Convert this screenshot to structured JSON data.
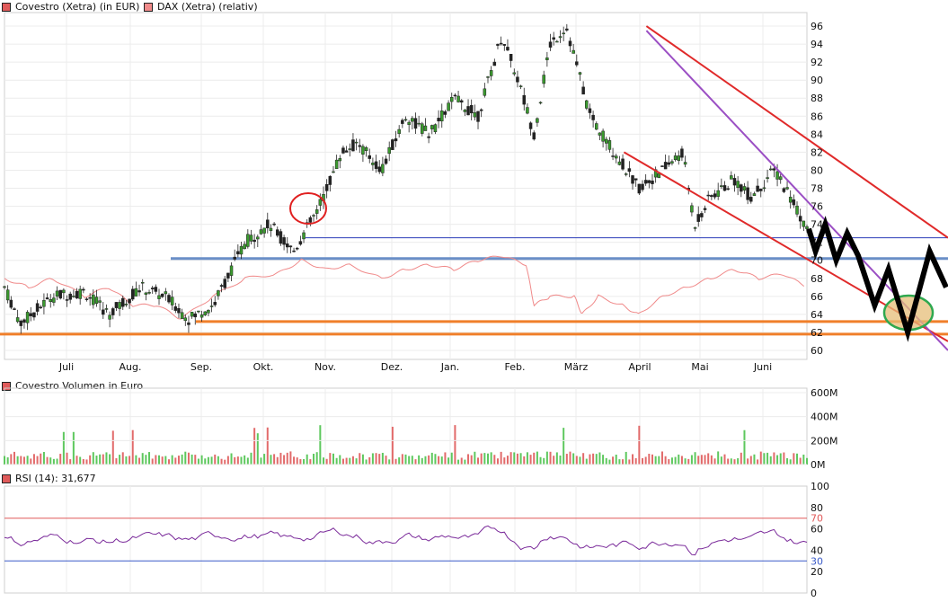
{
  "legend": {
    "main_series": "Covestro (Xetra) (in EUR)",
    "compare_series": "DAX (Xetra) (relativ)",
    "main_color": "#e05a5a",
    "compare_color": "#f08a8a"
  },
  "volume": {
    "label": "Covestro Volumen in Euro",
    "y_ticks": [
      "600M",
      "400M",
      "200M",
      "0M"
    ]
  },
  "rsi": {
    "label": "RSI (14): 31,677",
    "y_ticks": [
      "100",
      "80",
      "70",
      "60",
      "40",
      "30",
      "20",
      "0"
    ],
    "levels": [
      70,
      30
    ]
  },
  "chart_data": {
    "type": "candlestick",
    "x_ticks": [
      "Juli",
      "Aug.",
      "Sep.",
      "Okt.",
      "Nov.",
      "Dez.",
      "Jan.",
      "Feb.",
      "März",
      "April",
      "Mai",
      "Juni"
    ],
    "y_ticks": [
      60,
      62,
      64,
      66,
      68,
      70,
      72,
      74,
      76,
      78,
      80,
      82,
      84,
      86,
      88,
      90,
      92,
      94,
      96
    ],
    "ylim": [
      59,
      97.5
    ],
    "price_path": [
      [
        0,
        67
      ],
      [
        0.02,
        63
      ],
      [
        0.06,
        66
      ],
      [
        0.1,
        66.5
      ],
      [
        0.13,
        64
      ],
      [
        0.17,
        67
      ],
      [
        0.2,
        66
      ],
      [
        0.23,
        63.5
      ],
      [
        0.26,
        65
      ],
      [
        0.3,
        72
      ],
      [
        0.33,
        74
      ],
      [
        0.36,
        71
      ],
      [
        0.39,
        75.5
      ],
      [
        0.42,
        82
      ],
      [
        0.44,
        83
      ],
      [
        0.47,
        80
      ],
      [
        0.5,
        86
      ],
      [
        0.53,
        84
      ],
      [
        0.56,
        88
      ],
      [
        0.59,
        86
      ],
      [
        0.62,
        95
      ],
      [
        0.64,
        90
      ],
      [
        0.66,
        84
      ],
      [
        0.68,
        94
      ],
      [
        0.7,
        96
      ],
      [
        0.73,
        86
      ],
      [
        0.76,
        82
      ],
      [
        0.79,
        78
      ],
      [
        0.82,
        80
      ],
      [
        0.845,
        82
      ],
      [
        0.86,
        74
      ],
      [
        0.88,
        77
      ],
      [
        0.91,
        79
      ],
      [
        0.93,
        77
      ],
      [
        0.96,
        80
      ],
      [
        0.98,
        77
      ],
      [
        1.0,
        73.5
      ]
    ],
    "dax_relative_path": [
      [
        0,
        68
      ],
      [
        0.03,
        67
      ],
      [
        0.06,
        68
      ],
      [
        0.1,
        66
      ],
      [
        0.13,
        67
      ],
      [
        0.16,
        65
      ],
      [
        0.19,
        65
      ],
      [
        0.22,
        63.5
      ],
      [
        0.26,
        66
      ],
      [
        0.3,
        68
      ],
      [
        0.34,
        68.5
      ],
      [
        0.37,
        70
      ],
      [
        0.4,
        69
      ],
      [
        0.43,
        69.5
      ],
      [
        0.47,
        68
      ],
      [
        0.5,
        69
      ],
      [
        0.53,
        69.5
      ],
      [
        0.56,
        69
      ],
      [
        0.59,
        70
      ],
      [
        0.62,
        70.5
      ],
      [
        0.65,
        69.5
      ],
      [
        0.66,
        65
      ],
      [
        0.68,
        66
      ],
      [
        0.71,
        66
      ],
      [
        0.72,
        64
      ],
      [
        0.74,
        66
      ],
      [
        0.77,
        65
      ],
      [
        0.79,
        64
      ],
      [
        0.82,
        66
      ],
      [
        0.85,
        67
      ],
      [
        0.88,
        68
      ],
      [
        0.91,
        69
      ],
      [
        0.94,
        68
      ],
      [
        0.97,
        68.5
      ],
      [
        1.0,
        67
      ]
    ],
    "horizontal_lines": [
      {
        "value": 72.5,
        "color": "#2b3db8"
      },
      {
        "value": 70.2,
        "color": "#6a8fc7"
      },
      {
        "value": 63.2,
        "color": "#f07f2a"
      },
      {
        "value": 61.8,
        "color": "#f07f2a"
      }
    ],
    "trend_lines": [
      {
        "from": [
          0.8,
          96
        ],
        "to": [
          1.0,
          72.5
        ],
        "color": "#e02a2a"
      },
      {
        "from": [
          0.772,
          82
        ],
        "to": [
          1.0,
          61
        ],
        "color": "#e02a2a"
      },
      {
        "from": [
          0.8,
          95.5
        ],
        "to": [
          1.0,
          59
        ],
        "color": "#9b4fc4"
      }
    ],
    "forecast_path": [
      [
        0,
        73.5
      ],
      [
        0.05,
        71
      ],
      [
        0.12,
        74
      ],
      [
        0.2,
        70
      ],
      [
        0.28,
        73
      ],
      [
        0.36,
        70.5
      ],
      [
        0.48,
        65
      ],
      [
        0.58,
        69
      ],
      [
        0.72,
        62
      ],
      [
        0.88,
        71
      ],
      [
        1.0,
        67
      ]
    ],
    "volume_max_millions": 600,
    "rsi_ylim": [
      0,
      100
    ]
  }
}
